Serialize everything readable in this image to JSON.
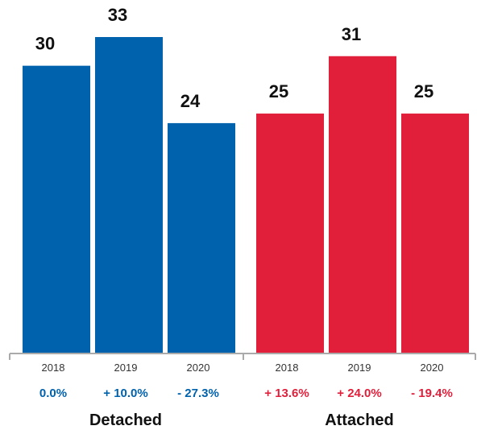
{
  "chart_data": {
    "type": "bar",
    "groups": [
      {
        "name": "Detached",
        "color": "#0062ac",
        "categories": [
          "2018",
          "2019",
          "2020"
        ],
        "values": [
          30,
          33,
          24
        ],
        "changes": [
          "0.0%",
          "+ 10.0%",
          "- 27.3%"
        ]
      },
      {
        "name": "Attached",
        "color": "#e21f3b",
        "categories": [
          "2018",
          "2019",
          "2020"
        ],
        "values": [
          25,
          31,
          25
        ],
        "changes": [
          "+ 13.6%",
          "+ 24.0%",
          "- 19.4%"
        ]
      }
    ],
    "ylim": [
      0,
      33
    ],
    "grid": false
  }
}
